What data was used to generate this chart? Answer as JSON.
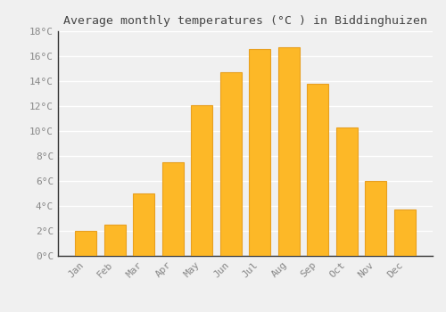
{
  "title": "Average monthly temperatures (°C ) in Biddinghuizen",
  "months": [
    "Jan",
    "Feb",
    "Mar",
    "Apr",
    "May",
    "Jun",
    "Jul",
    "Aug",
    "Sep",
    "Oct",
    "Nov",
    "Dec"
  ],
  "values": [
    2.0,
    2.5,
    5.0,
    7.5,
    12.1,
    14.7,
    16.6,
    16.7,
    13.8,
    10.3,
    6.0,
    3.7
  ],
  "bar_color": "#FDB827",
  "bar_edge_color": "#E8A020",
  "ylim": [
    0,
    18
  ],
  "yticks": [
    0,
    2,
    4,
    6,
    8,
    10,
    12,
    14,
    16,
    18
  ],
  "ytick_labels": [
    "0°C",
    "2°C",
    "4°C",
    "6°C",
    "8°C",
    "10°C",
    "12°C",
    "14°C",
    "16°C",
    "18°C"
  ],
  "background_color": "#f0f0f0",
  "grid_color": "#ffffff",
  "title_fontsize": 9.5,
  "tick_fontsize": 8,
  "tick_color": "#888888",
  "title_color": "#444444",
  "left_spine_color": "#333333",
  "bottom_spine_color": "#333333"
}
